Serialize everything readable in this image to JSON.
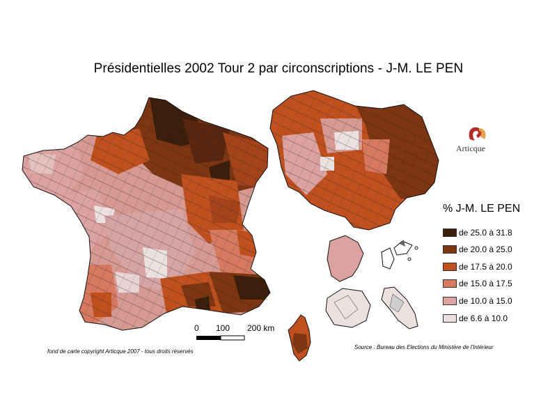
{
  "title": "Présidentielles 2002 Tour 2 par circonscriptions - J-M. LE PEN",
  "legend": {
    "title": "% J-M. LE PEN",
    "items": [
      {
        "label": "de 25.0 à 31.8",
        "color": "#3b1e0c"
      },
      {
        "label": "de 20.0 à 25.0",
        "color": "#7e3511"
      },
      {
        "label": "de 17.5 à 20.0",
        "color": "#c0511f"
      },
      {
        "label": "de 15.0 à 17.5",
        "color": "#d67960"
      },
      {
        "label": "de 10.0 à 15.0",
        "color": "#dba2a0"
      },
      {
        "label": "de 6.6 à 10.0",
        "color": "#ece0e0"
      }
    ]
  },
  "scale": {
    "ticks": [
      "0",
      "100",
      "200 km"
    ]
  },
  "logo": {
    "text": "Articque",
    "colors": [
      "#b52a2a",
      "#e7a14a"
    ]
  },
  "copyright": "fond de carte copyright Articque 2007 - tous droits réservés",
  "source": "Source : Bureau des Elections du Ministère de l'Intérieur"
}
